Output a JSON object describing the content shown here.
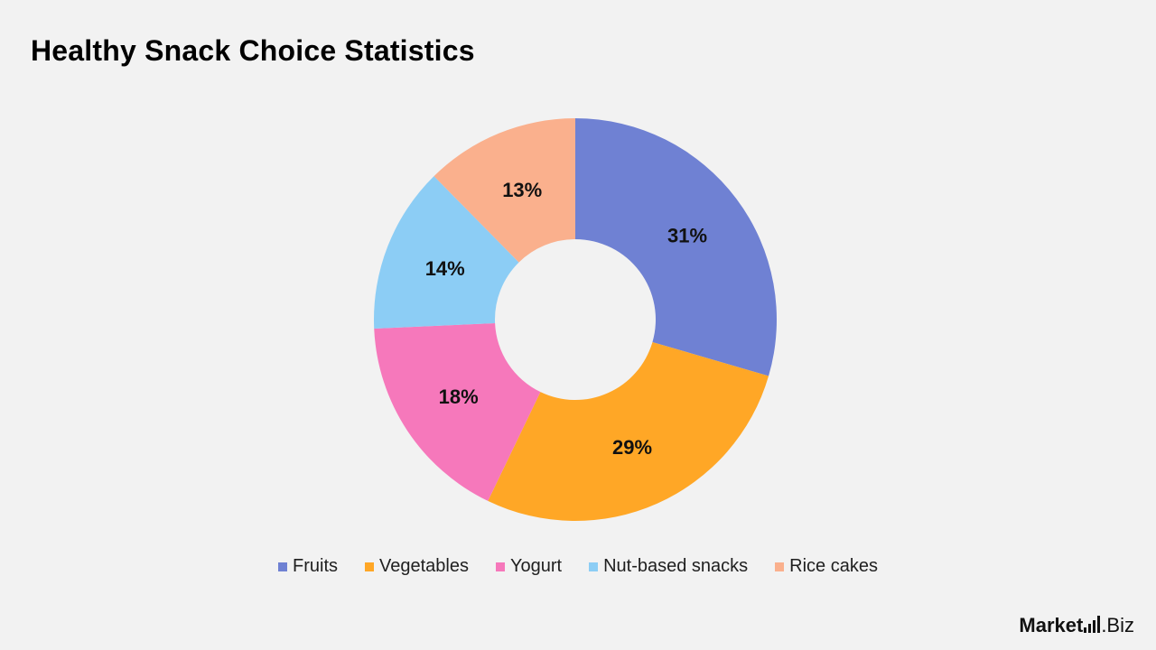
{
  "title": "Healthy Snack Choice Statistics",
  "chart_data": {
    "type": "pie",
    "donut": true,
    "title": "Healthy Snack Choice Statistics",
    "categories": [
      "Fruits",
      "Vegetables",
      "Yogurt",
      "Nut-based snacks",
      "Rice cakes"
    ],
    "values": [
      31,
      29,
      18,
      14,
      13
    ],
    "labels": [
      "31%",
      "29%",
      "18%",
      "14%",
      "13%"
    ],
    "colors": [
      "#6f81d3",
      "#ffa726",
      "#f678bb",
      "#8ccdf5",
      "#fab08d"
    ],
    "legend_position": "bottom"
  },
  "logo": {
    "main": "Market",
    "suffix": ".Biz"
  }
}
